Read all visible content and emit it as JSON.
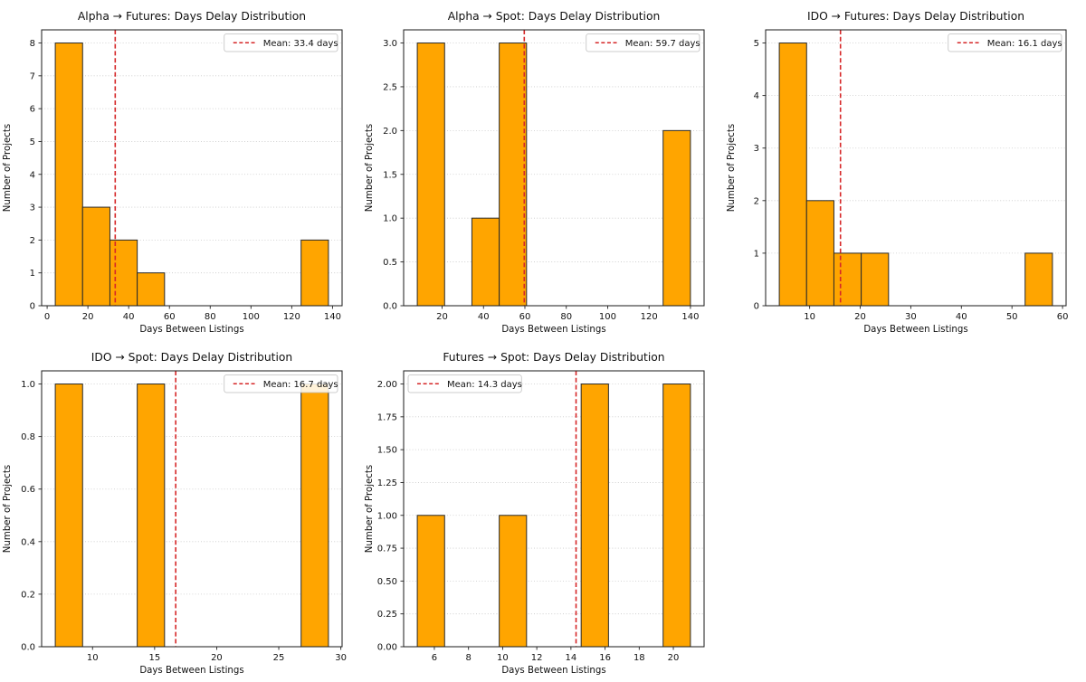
{
  "figure": {
    "background": "#ffffff",
    "bar_color": "#FFA500",
    "bar_edge_color": "#2a2a2a",
    "mean_line_color": "#d62728",
    "grid_color": "#c9c9c9",
    "spine_color": "#1a1a1a",
    "tick_color": "#222222",
    "text_color": "#111111",
    "legend_fill": "rgba(255,255,255,0.85)",
    "legend_border": "#bfbfbf",
    "xlabel": "Days Between Listings",
    "ylabel": "Number of Projects"
  },
  "chart_data": [
    {
      "id": "alpha-futures",
      "type": "bar",
      "title": "Alpha → Futures: Days Delay Distribution",
      "xlabel": "Days Between Listings",
      "ylabel": "Number of Projects",
      "legend": {
        "label": "Mean: 33.4 days",
        "position": "top-right"
      },
      "mean": 33.4,
      "bin_edges": [
        4,
        17.4,
        30.8,
        44.2,
        57.6,
        71,
        84.4,
        97.8,
        111.2,
        124.6,
        138
      ],
      "counts": [
        8,
        3,
        2,
        1,
        0,
        0,
        0,
        0,
        0,
        2
      ],
      "xlim": [
        -2.7,
        144.7
      ],
      "ylim": [
        0,
        8.4
      ],
      "xticks": [
        0,
        20,
        40,
        60,
        80,
        100,
        120,
        140
      ],
      "xtick_labels": [
        "0",
        "20",
        "40",
        "60",
        "80",
        "100",
        "120",
        "140"
      ],
      "yticks": [
        0,
        1,
        2,
        3,
        4,
        5,
        6,
        7,
        8
      ],
      "ytick_labels": [
        "0",
        "1",
        "2",
        "3",
        "4",
        "5",
        "6",
        "7",
        "8"
      ],
      "grid": "y-dotted"
    },
    {
      "id": "alpha-spot",
      "type": "bar",
      "title": "Alpha → Spot: Days Delay Distribution",
      "xlabel": "Days Between Listings",
      "ylabel": "Number of Projects",
      "legend": {
        "label": "Mean: 59.7 days",
        "position": "top-right"
      },
      "mean": 59.7,
      "bin_edges": [
        8,
        21.2,
        34.4,
        47.6,
        60.8,
        74,
        87.2,
        100.4,
        113.6,
        126.8,
        140
      ],
      "counts": [
        3,
        0,
        1,
        3,
        0,
        0,
        0,
        0,
        0,
        2
      ],
      "xlim": [
        1.4,
        146.6
      ],
      "ylim": [
        0,
        3.15
      ],
      "xticks": [
        20,
        40,
        60,
        80,
        100,
        120,
        140
      ],
      "xtick_labels": [
        "20",
        "40",
        "60",
        "80",
        "100",
        "120",
        "140"
      ],
      "yticks": [
        0,
        0.5,
        1.0,
        1.5,
        2.0,
        2.5,
        3.0
      ],
      "ytick_labels": [
        "0.0",
        "0.5",
        "1.0",
        "1.5",
        "2.0",
        "2.5",
        "3.0"
      ],
      "grid": "y-dotted"
    },
    {
      "id": "ido-futures",
      "type": "bar",
      "title": "IDO → Futures: Days Delay Distribution",
      "xlabel": "Days Between Listings",
      "ylabel": "Number of Projects",
      "legend": {
        "label": "Mean: 16.1 days",
        "position": "top-right"
      },
      "mean": 16.1,
      "bin_edges": [
        4,
        9.4,
        14.8,
        20.2,
        25.6,
        31,
        36.4,
        41.8,
        47.2,
        52.6,
        58
      ],
      "counts": [
        5,
        2,
        1,
        1,
        0,
        0,
        0,
        0,
        0,
        1
      ],
      "xlim": [
        1.3,
        60.7
      ],
      "ylim": [
        0,
        5.25
      ],
      "xticks": [
        10,
        20,
        30,
        40,
        50,
        60
      ],
      "xtick_labels": [
        "10",
        "20",
        "30",
        "40",
        "50",
        "60"
      ],
      "yticks": [
        0,
        1,
        2,
        3,
        4,
        5
      ],
      "ytick_labels": [
        "0",
        "1",
        "2",
        "3",
        "4",
        "5"
      ],
      "grid": "y-dotted"
    },
    {
      "id": "ido-spot",
      "type": "bar",
      "title": "IDO → Spot: Days Delay Distribution",
      "xlabel": "Days Between Listings",
      "ylabel": "Number of Projects",
      "legend": {
        "label": "Mean: 16.7 days",
        "position": "top-right"
      },
      "mean": 16.7,
      "bin_edges": [
        7,
        9.2,
        11.4,
        13.6,
        15.8,
        18,
        20.2,
        22.4,
        24.6,
        26.8,
        29
      ],
      "counts": [
        1,
        0,
        0,
        1,
        0,
        0,
        0,
        0,
        0,
        1
      ],
      "xlim": [
        5.9,
        30.1
      ],
      "ylim": [
        0,
        1.05
      ],
      "xticks": [
        10,
        15,
        20,
        25,
        30
      ],
      "xtick_labels": [
        "10",
        "15",
        "20",
        "25",
        "30"
      ],
      "yticks": [
        0,
        0.2,
        0.4,
        0.6,
        0.8,
        1.0
      ],
      "ytick_labels": [
        "0.0",
        "0.2",
        "0.4",
        "0.6",
        "0.8",
        "1.0"
      ],
      "grid": "y-dotted"
    },
    {
      "id": "futures-spot",
      "type": "bar",
      "title": "Futures → Spot: Days Delay Distribution",
      "xlabel": "Days Between Listings",
      "ylabel": "Number of Projects",
      "legend": {
        "label": "Mean: 14.3 days",
        "position": "top-left"
      },
      "mean": 14.3,
      "bin_edges": [
        5,
        6.6,
        8.2,
        9.8,
        11.4,
        13,
        14.6,
        16.2,
        17.8,
        19.4,
        21
      ],
      "counts": [
        1,
        0,
        0,
        1,
        0,
        0,
        2,
        0,
        0,
        2
      ],
      "xlim": [
        4.2,
        21.8
      ],
      "ylim": [
        0,
        2.1
      ],
      "xticks": [
        6,
        8,
        10,
        12,
        14,
        16,
        18,
        20
      ],
      "xtick_labels": [
        "6",
        "8",
        "10",
        "12",
        "14",
        "16",
        "18",
        "20"
      ],
      "yticks": [
        0,
        0.25,
        0.5,
        0.75,
        1.0,
        1.25,
        1.5,
        1.75,
        2.0
      ],
      "ytick_labels": [
        "0.00",
        "0.25",
        "0.50",
        "0.75",
        "1.00",
        "1.25",
        "1.50",
        "1.75",
        "2.00"
      ],
      "grid": "y-dotted"
    }
  ]
}
